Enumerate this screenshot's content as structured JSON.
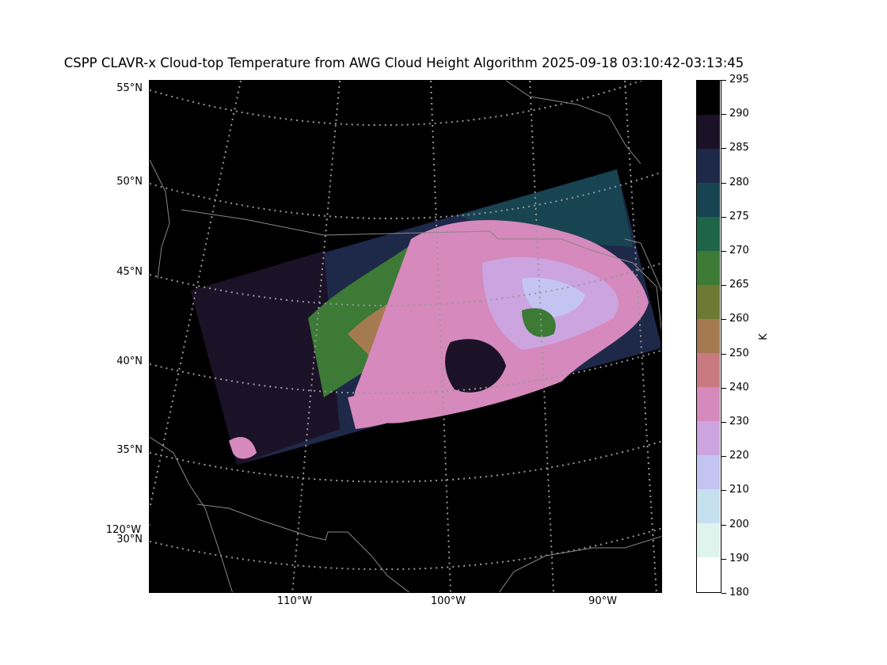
{
  "figure": {
    "title": "CSPP CLAVR-x Cloud-top Temperature from AWG Cloud Height Algorithm 2025-09-18 03:10:42-03:13:45"
  },
  "map": {
    "lat_labels": [
      "55°N",
      "50°N",
      "45°N",
      "40°N",
      "35°N",
      "30°N"
    ],
    "lon_labels": [
      "120°W",
      "110°W",
      "100°W",
      "90°W"
    ],
    "background_color": "#000000",
    "gridline_color": "#999999",
    "coastline_color": "#888888"
  },
  "colorbar": {
    "unit": "K",
    "ticks": [
      "295",
      "290",
      "285",
      "280",
      "275",
      "270",
      "265",
      "260",
      "250",
      "240",
      "230",
      "220",
      "210",
      "200",
      "190",
      "180"
    ],
    "bands": [
      {
        "range": "290-295",
        "color": "#000000"
      },
      {
        "range": "285-290",
        "color": "#1c1228"
      },
      {
        "range": "280-285",
        "color": "#1e2848"
      },
      {
        "range": "275-280",
        "color": "#174450"
      },
      {
        "range": "270-275",
        "color": "#1e6448"
      },
      {
        "range": "265-270",
        "color": "#3c7a36"
      },
      {
        "range": "260-265",
        "color": "#6e7a34"
      },
      {
        "range": "250-260",
        "color": "#a67a50"
      },
      {
        "range": "240-250",
        "color": "#c87a80"
      },
      {
        "range": "230-240",
        "color": "#d689bd"
      },
      {
        "range": "220-230",
        "color": "#cca4e0"
      },
      {
        "range": "210-220",
        "color": "#c4c4f2"
      },
      {
        "range": "200-210",
        "color": "#c6e0f0"
      },
      {
        "range": "190-200",
        "color": "#e0f4ee"
      },
      {
        "range": "180-190",
        "color": "#ffffff"
      }
    ]
  }
}
